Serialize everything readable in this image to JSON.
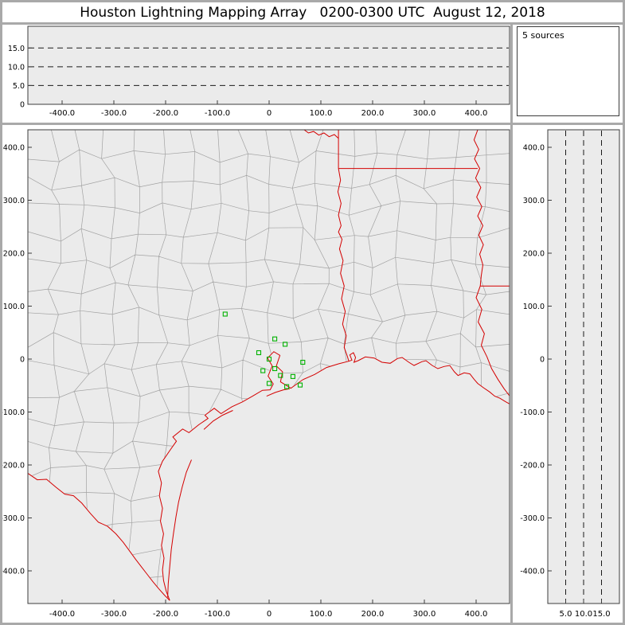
{
  "title": "Houston Lightning Mapping Array   0200-0300 UTC  August 12, 2018",
  "colors": {
    "panel_bg": "#ebebeb",
    "box_border": "#3c3c3c",
    "county_line": "#a2a2a2",
    "state_line": "#d40000",
    "station": "#00b200",
    "grid_dash": "#1a1a1a",
    "frame_gray": "#a9a9a9"
  },
  "chart_data": {
    "type": "scatter",
    "title": "Houston Lightning Mapping Array",
    "time_range": "0200-0300 UTC",
    "date": "August 12, 2018",
    "km_ticks": {
      "values": [
        -400,
        -300,
        -200,
        -100,
        0,
        100,
        200,
        300,
        400
      ],
      "labels": [
        "-400.0",
        "-300.0",
        "-200.0",
        "-100.0",
        "0",
        "100.0",
        "200.0",
        "300.0",
        "400.0"
      ]
    },
    "panels": {
      "alt_ew": {
        "type": "scatter",
        "alt_range": [
          0,
          20.8
        ],
        "dashed_altitudes": [
          5,
          10,
          15
        ],
        "y_ticks": {
          "values": [
            15,
            10,
            5,
            0
          ],
          "labels": [
            "15.0",
            "10.0",
            "5.0",
            "0"
          ]
        },
        "points": []
      },
      "histogram": {
        "label": "5 sources"
      },
      "map": {
        "type": "map-scatter",
        "x_range_km": [
          -466,
          465
        ],
        "y_range_km": [
          -462,
          433
        ],
        "stations_km": [
          [
            -85,
            85
          ],
          [
            11,
            38
          ],
          [
            31,
            28
          ],
          [
            -20,
            12
          ],
          [
            0,
            0
          ],
          [
            -12,
            -22
          ],
          [
            22,
            -31
          ],
          [
            46,
            -33
          ],
          [
            0,
            -46
          ],
          [
            34,
            -52
          ],
          [
            60,
            -49
          ],
          [
            65,
            -6
          ],
          [
            11,
            -18
          ]
        ],
        "coastline_km": [
          [
            -192,
            -456
          ],
          [
            -199,
            -438
          ],
          [
            -204,
            -418
          ],
          [
            -206,
            -398
          ],
          [
            -203,
            -376
          ],
          [
            -208,
            -352
          ],
          [
            -204,
            -330
          ],
          [
            -210,
            -306
          ],
          [
            -206,
            -282
          ],
          [
            -212,
            -258
          ],
          [
            -208,
            -234
          ],
          [
            -214,
            -212
          ],
          [
            -206,
            -193
          ],
          [
            -190,
            -170
          ],
          [
            -179,
            -155
          ],
          [
            -186,
            -147
          ],
          [
            -167,
            -132
          ],
          [
            -155,
            -139
          ],
          [
            -136,
            -124
          ],
          [
            -118,
            -112
          ],
          [
            -124,
            -106
          ],
          [
            -106,
            -93
          ],
          [
            -93,
            -103
          ],
          [
            -72,
            -90
          ],
          [
            -52,
            -81
          ],
          [
            -32,
            -70
          ],
          [
            -13,
            -59
          ],
          [
            2,
            -58
          ],
          [
            8,
            -47
          ],
          [
            -2,
            -32
          ],
          [
            6,
            -13
          ],
          [
            -3,
            2
          ],
          [
            9,
            14
          ],
          [
            21,
            7
          ],
          [
            14,
            -13
          ],
          [
            26,
            -24
          ],
          [
            22,
            -43
          ],
          [
            34,
            -50
          ],
          [
            42,
            -55
          ],
          [
            65,
            -39
          ],
          [
            88,
            -29
          ],
          [
            111,
            -16
          ],
          [
            134,
            -9
          ],
          [
            154,
            -4
          ],
          [
            160,
            -2
          ],
          [
            156,
            8
          ],
          [
            163,
            12
          ],
          [
            167,
            3
          ],
          [
            164,
            -6
          ],
          [
            172,
            -3
          ],
          [
            186,
            4
          ],
          [
            203,
            2
          ],
          [
            218,
            -6
          ],
          [
            234,
            -8
          ],
          [
            248,
            1
          ],
          [
            257,
            3
          ],
          [
            270,
            -6
          ],
          [
            280,
            -12
          ],
          [
            295,
            -5
          ],
          [
            303,
            -3
          ],
          [
            315,
            -12
          ],
          [
            326,
            -18
          ],
          [
            338,
            -14
          ],
          [
            349,
            -12
          ],
          [
            358,
            -24
          ],
          [
            365,
            -31
          ],
          [
            377,
            -26
          ],
          [
            388,
            -28
          ],
          [
            396,
            -38
          ],
          [
            403,
            -46
          ],
          [
            414,
            -54
          ],
          [
            426,
            -62
          ],
          [
            436,
            -70
          ],
          [
            446,
            -74
          ],
          [
            456,
            -80
          ],
          [
            465,
            -85
          ]
        ],
        "rio_grande_km": [
          [
            -466,
            -216
          ],
          [
            -448,
            -228
          ],
          [
            -430,
            -227
          ],
          [
            -412,
            -242
          ],
          [
            -395,
            -255
          ],
          [
            -378,
            -258
          ],
          [
            -362,
            -272
          ],
          [
            -345,
            -292
          ],
          [
            -330,
            -308
          ],
          [
            -312,
            -316
          ],
          [
            -296,
            -330
          ],
          [
            -282,
            -346
          ],
          [
            -270,
            -362
          ],
          [
            -258,
            -378
          ],
          [
            -247,
            -392
          ],
          [
            -236,
            -406
          ],
          [
            -225,
            -420
          ],
          [
            -213,
            -434
          ],
          [
            -202,
            -446
          ],
          [
            -192,
            -456
          ]
        ],
        "barrier_islands_km": [
          [
            [
              -150,
              -190
            ],
            [
              -160,
              -214
            ],
            [
              -168,
              -242
            ],
            [
              -175,
              -270
            ],
            [
              -180,
              -298
            ],
            [
              -185,
              -330
            ],
            [
              -189,
              -360
            ],
            [
              -192,
              -392
            ],
            [
              -195,
              -424
            ],
            [
              -196,
              -450
            ]
          ],
          [
            [
              -126,
              -133
            ],
            [
              -108,
              -117
            ],
            [
              -90,
              -106
            ],
            [
              -70,
              -97
            ]
          ],
          [
            [
              -5,
              -70
            ],
            [
              12,
              -63
            ],
            [
              28,
              -58
            ],
            [
              40,
              -56
            ]
          ]
        ],
        "state_borders_km": [
          [
            [
              68,
              433
            ],
            [
              76,
              427
            ],
            [
              86,
              430
            ],
            [
              96,
              423
            ],
            [
              106,
              427
            ],
            [
              116,
              420
            ],
            [
              126,
              424
            ],
            [
              134,
              417
            ]
          ],
          [
            [
              134,
              433
            ],
            [
              134,
              360
            ]
          ],
          [
            [
              134,
              360
            ],
            [
              403,
              360
            ]
          ],
          [
            [
              134,
              360
            ],
            [
              138,
              338
            ],
            [
              133,
              316
            ],
            [
              139,
              294
            ],
            [
              134,
              272
            ],
            [
              139,
              252
            ],
            [
              134,
              240
            ],
            [
              141,
              226
            ],
            [
              136,
              208
            ],
            [
              143,
              186
            ],
            [
              138,
              162
            ],
            [
              145,
              138
            ],
            [
              140,
              114
            ],
            [
              147,
              90
            ],
            [
              142,
              66
            ],
            [
              149,
              44
            ],
            [
              145,
              22
            ],
            [
              151,
              6
            ],
            [
              154,
              -4
            ]
          ],
          [
            [
              403,
              433
            ],
            [
              396,
              414
            ],
            [
              405,
              396
            ],
            [
              397,
              378
            ],
            [
              407,
              360
            ],
            [
              399,
              342
            ],
            [
              409,
              324
            ],
            [
              401,
              306
            ],
            [
              411,
              288
            ],
            [
              403,
              270
            ],
            [
              413,
              252
            ],
            [
              405,
              234
            ],
            [
              414,
              216
            ],
            [
              407,
              198
            ],
            [
              413,
              178
            ],
            [
              410,
              158
            ],
            [
              408,
              138
            ]
          ],
          [
            [
              408,
              138
            ],
            [
              465,
              138
            ]
          ],
          [
            [
              408,
              138
            ],
            [
              400,
              116
            ],
            [
              411,
              94
            ],
            [
              404,
              70
            ],
            [
              416,
              48
            ],
            [
              410,
              26
            ],
            [
              421,
              4
            ],
            [
              430,
              -18
            ],
            [
              442,
              -38
            ],
            [
              454,
              -56
            ],
            [
              465,
              -70
            ]
          ]
        ],
        "county_grid": {
          "spacing_km": 52,
          "jitter_km": 15,
          "seed": 20180812
        }
      },
      "alt_ns": {
        "type": "scatter",
        "alt_range": [
          0,
          20
        ],
        "dashed_altitudes": [
          5,
          10,
          15
        ],
        "x_ticks": {
          "values": [
            5,
            10,
            15
          ],
          "labels": [
            "5.0",
            "10.0",
            "15.0"
          ]
        },
        "points": []
      }
    }
  }
}
